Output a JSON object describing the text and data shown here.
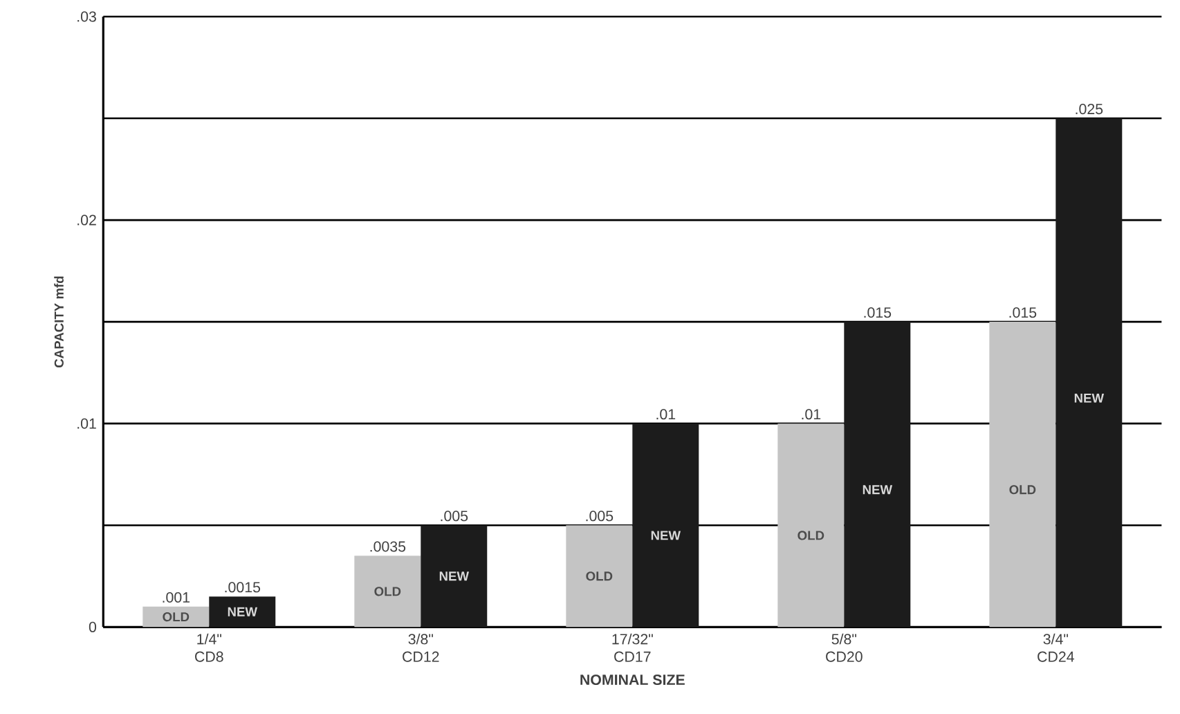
{
  "chart_data": {
    "type": "bar",
    "xlabel": "NOMINAL SIZE",
    "ylabel": "CAPACITY mfd",
    "categories": [
      "1/4\" CD8",
      "3/8\" CD12",
      "17/32\" CD17",
      "5/8\" CD20",
      "3/4\" CD24"
    ],
    "series": [
      {
        "name": "OLD",
        "color": "#c4c4c4",
        "values": [
          0.001,
          0.0035,
          0.005,
          0.01,
          0.015
        ],
        "value_labels": [
          ".001",
          ".0035",
          ".005",
          ".01",
          ".015"
        ]
      },
      {
        "name": "NEW",
        "color": "#1c1c1c",
        "values": [
          0.0015,
          0.005,
          0.01,
          0.015,
          0.025
        ],
        "value_labels": [
          ".0015",
          ".005",
          ".01",
          ".015",
          ".025"
        ]
      }
    ],
    "ylim": [
      0,
      0.03
    ],
    "yticks": [
      0,
      {
        "value": 0.005,
        "label": null
      },
      {
        "value": 0.01,
        "label": ".01"
      },
      {
        "value": 0.015,
        "label": null
      },
      {
        "value": 0.02,
        "label": ".02"
      },
      {
        "value": 0.025,
        "label": null
      },
      {
        "value": 0.03,
        "label": ".03"
      }
    ],
    "grid": "y",
    "legend": false
  }
}
